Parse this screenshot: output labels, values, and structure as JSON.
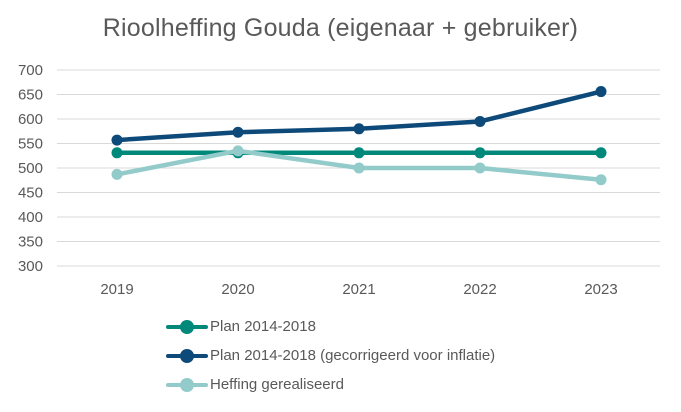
{
  "chart_data": {
    "type": "line",
    "title": "Rioolheffing Gouda (eigenaar + gebruiker)",
    "xlabel": "",
    "ylabel": "",
    "categories": [
      "2019",
      "2020",
      "2021",
      "2022",
      "2023"
    ],
    "ylim": [
      300,
      700
    ],
    "yticks": [
      "700",
      "650",
      "600",
      "550",
      "500",
      "450",
      "400",
      "350",
      "300"
    ],
    "grid": true,
    "legend_position": "bottom",
    "series": [
      {
        "name": "Plan 2014-2018",
        "color": "#00897b",
        "values": [
          531,
          531,
          531,
          531,
          531
        ]
      },
      {
        "name": "Plan 2014-2018 (gecorrigeerd voor inflatie)",
        "color": "#0d4a7a",
        "values": [
          557,
          573,
          580,
          595,
          656
        ]
      },
      {
        "name": "Heffing gerealiseerd",
        "color": "#93cbcb",
        "values": [
          487,
          535,
          500,
          500,
          476
        ]
      }
    ]
  }
}
